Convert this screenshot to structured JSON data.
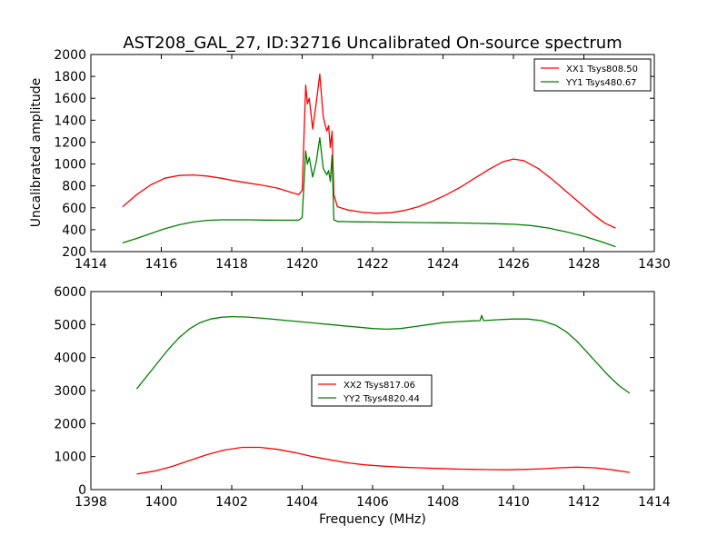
{
  "figure": {
    "title": "AST208_GAL_27, ID:32716 Uncalibrated On-source spectrum",
    "ylabel": "Uncalibrated amplitude",
    "xlabel": "Frequency (MHz)"
  },
  "chart_data": [
    {
      "type": "line",
      "xlim": [
        1414,
        1430
      ],
      "ylim": [
        200,
        2000
      ],
      "xticks": [
        1414,
        1416,
        1418,
        1420,
        1422,
        1424,
        1426,
        1428,
        1430
      ],
      "yticks": [
        200,
        400,
        600,
        800,
        1000,
        1200,
        1400,
        1600,
        1800,
        2000
      ],
      "legend_position": "top-right",
      "grid": false,
      "series": [
        {
          "name": "XX1 Tsys808.50",
          "color": "#ff0000",
          "x": [
            1414.9,
            1415.3,
            1415.7,
            1416.1,
            1416.5,
            1416.9,
            1417.3,
            1417.7,
            1418.1,
            1418.5,
            1418.9,
            1419.3,
            1419.6,
            1419.9,
            1420.0,
            1420.1,
            1420.15,
            1420.2,
            1420.3,
            1420.4,
            1420.5,
            1420.6,
            1420.7,
            1420.75,
            1420.8,
            1420.85,
            1420.9,
            1421.0,
            1421.3,
            1421.7,
            1422.1,
            1422.5,
            1422.9,
            1423.3,
            1423.7,
            1424.1,
            1424.5,
            1424.9,
            1425.3,
            1425.7,
            1426.0,
            1426.3,
            1426.7,
            1427.1,
            1427.5,
            1427.9,
            1428.3,
            1428.6,
            1428.9
          ],
          "y": [
            610,
            720,
            810,
            870,
            895,
            900,
            890,
            870,
            845,
            825,
            805,
            780,
            750,
            720,
            760,
            1720,
            1550,
            1600,
            1320,
            1560,
            1820,
            1430,
            1300,
            1350,
            1150,
            1300,
            720,
            610,
            580,
            560,
            550,
            555,
            575,
            610,
            660,
            720,
            790,
            870,
            950,
            1020,
            1045,
            1030,
            960,
            860,
            750,
            640,
            530,
            460,
            415
          ]
        },
        {
          "name": "YY1 Tsys480.67",
          "color": "#008000",
          "x": [
            1414.9,
            1415.3,
            1415.7,
            1416.1,
            1416.5,
            1416.9,
            1417.3,
            1417.7,
            1418.1,
            1418.5,
            1418.9,
            1419.3,
            1419.6,
            1419.9,
            1420.0,
            1420.1,
            1420.15,
            1420.2,
            1420.3,
            1420.4,
            1420.5,
            1420.6,
            1420.7,
            1420.75,
            1420.8,
            1420.85,
            1420.9,
            1421.0,
            1421.5,
            1422.0,
            1422.5,
            1423.0,
            1423.5,
            1424.0,
            1424.5,
            1425.0,
            1425.5,
            1426.0,
            1426.5,
            1427.0,
            1427.5,
            1428.0,
            1428.5,
            1428.9
          ],
          "y": [
            280,
            320,
            365,
            410,
            445,
            470,
            485,
            490,
            490,
            490,
            488,
            487,
            487,
            487,
            510,
            1120,
            1000,
            1060,
            880,
            1020,
            1240,
            960,
            900,
            940,
            840,
            1080,
            490,
            475,
            472,
            470,
            468,
            466,
            465,
            463,
            461,
            458,
            455,
            450,
            438,
            415,
            380,
            340,
            290,
            245
          ]
        }
      ]
    },
    {
      "type": "line",
      "xlim": [
        1398,
        1414
      ],
      "ylim": [
        0,
        6000
      ],
      "xticks": [
        1398,
        1400,
        1402,
        1404,
        1406,
        1408,
        1410,
        1412,
        1414
      ],
      "yticks": [
        0,
        1000,
        2000,
        3000,
        4000,
        5000,
        6000
      ],
      "legend_position": "center",
      "grid": false,
      "series": [
        {
          "name": "XX2 Tsys817.06",
          "color": "#ff0000",
          "x": [
            1399.3,
            1399.8,
            1400.3,
            1400.8,
            1401.3,
            1401.8,
            1402.3,
            1402.8,
            1403.3,
            1403.8,
            1404.3,
            1404.8,
            1405.3,
            1405.8,
            1406.3,
            1406.8,
            1407.3,
            1407.8,
            1408.3,
            1408.8,
            1409.3,
            1409.8,
            1410.3,
            1410.8,
            1411.3,
            1411.8,
            1412.3,
            1412.8,
            1413.3
          ],
          "y": [
            470,
            560,
            700,
            880,
            1060,
            1200,
            1280,
            1280,
            1220,
            1120,
            1000,
            900,
            810,
            750,
            710,
            680,
            660,
            640,
            625,
            615,
            605,
            600,
            610,
            630,
            660,
            680,
            660,
            600,
            520
          ]
        },
        {
          "name": "YY2 Tsys4820.44",
          "color": "#008000",
          "x": [
            1399.3,
            1399.6,
            1399.9,
            1400.2,
            1400.5,
            1400.8,
            1401.1,
            1401.4,
            1401.7,
            1402.0,
            1402.4,
            1402.8,
            1403.2,
            1403.6,
            1404.0,
            1404.4,
            1404.8,
            1405.2,
            1405.6,
            1406.0,
            1406.4,
            1406.8,
            1407.2,
            1407.6,
            1408.0,
            1408.4,
            1408.8,
            1409.05,
            1409.1,
            1409.15,
            1409.6,
            1410.0,
            1410.4,
            1410.8,
            1411.2,
            1411.5,
            1411.8,
            1412.1,
            1412.4,
            1412.7,
            1413.0,
            1413.3
          ],
          "y": [
            3050,
            3450,
            3850,
            4250,
            4600,
            4870,
            5060,
            5170,
            5220,
            5240,
            5230,
            5200,
            5160,
            5120,
            5080,
            5040,
            5000,
            4960,
            4920,
            4880,
            4860,
            4880,
            4940,
            5000,
            5060,
            5090,
            5110,
            5120,
            5280,
            5120,
            5150,
            5170,
            5170,
            5120,
            4980,
            4780,
            4500,
            4150,
            3800,
            3450,
            3150,
            2920
          ]
        }
      ]
    }
  ]
}
